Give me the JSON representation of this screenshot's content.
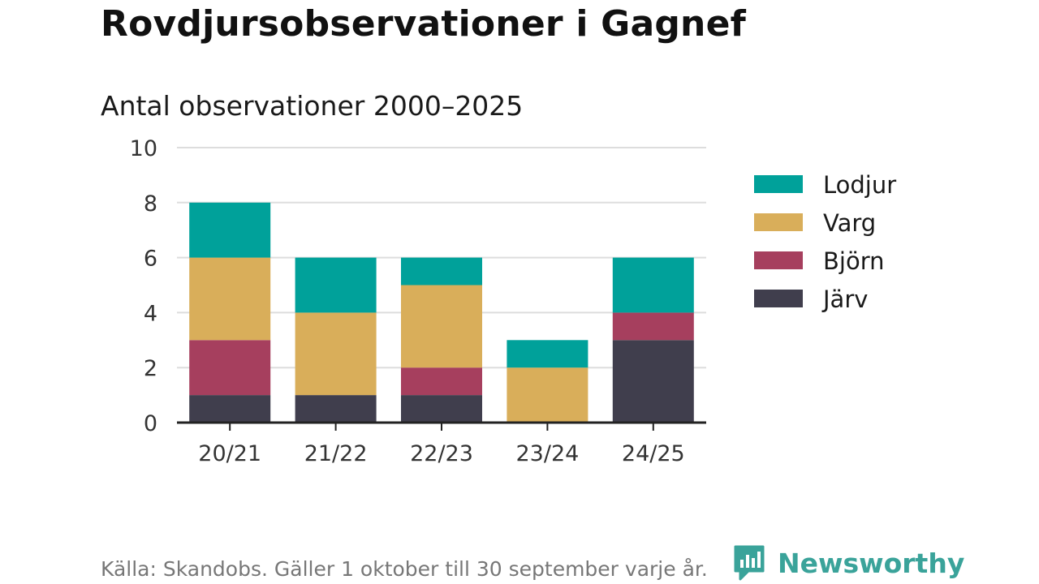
{
  "header": {
    "title": "Rovdjursobservationer i Gagnef",
    "subtitle": "Antal observationer 2000–2025"
  },
  "footer": {
    "source": "Källa: Skandobs. Gäller 1 oktober till 30 september varje år.",
    "brand": "Newsworthy"
  },
  "colors": {
    "lodjur": "#00A19A",
    "varg": "#D9AE5A",
    "bjorn": "#A63F5E",
    "jarv": "#403E4D",
    "grid": "#dddddd",
    "axis": "#222222",
    "brand": "#3aa39a"
  },
  "chart_data": {
    "type": "bar",
    "stacked": true,
    "categories": [
      "20/21",
      "21/22",
      "22/23",
      "23/24",
      "24/25"
    ],
    "series": [
      {
        "name": "Järv",
        "color": "#403E4D",
        "values": [
          1,
          1,
          1,
          0,
          3
        ]
      },
      {
        "name": "Björn",
        "color": "#A63F5E",
        "values": [
          2,
          0,
          1,
          0,
          1
        ]
      },
      {
        "name": "Varg",
        "color": "#D9AE5A",
        "values": [
          3,
          3,
          3,
          2,
          0
        ]
      },
      {
        "name": "Lodjur",
        "color": "#00A19A",
        "values": [
          2,
          2,
          1,
          1,
          2
        ]
      }
    ],
    "legend_order": [
      "Lodjur",
      "Varg",
      "Björn",
      "Järv"
    ],
    "yticks": [
      0,
      2,
      4,
      6,
      8,
      10
    ],
    "ylim": [
      0,
      10
    ],
    "grid": true,
    "legend_position": "right"
  }
}
